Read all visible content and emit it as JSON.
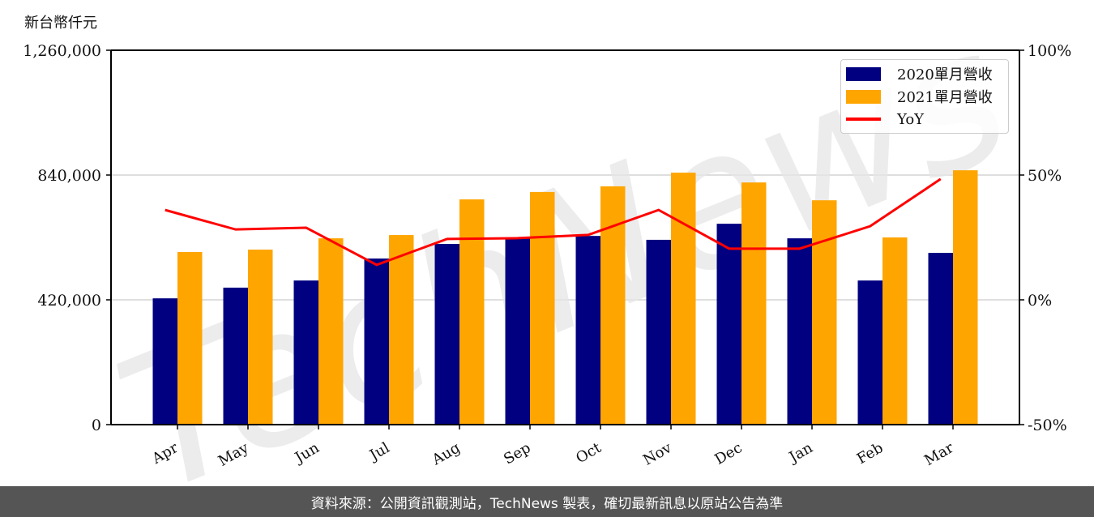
{
  "chart_data": {
    "type": "bar",
    "title": "",
    "ylabel": "新台幣仟元",
    "xlabel": "",
    "categories": [
      "Apr",
      "May",
      "Jun",
      "Jul",
      "Aug",
      "Sep",
      "Oct",
      "Nov",
      "Dec",
      "Jan",
      "Feb",
      "Mar"
    ],
    "series": [
      {
        "name": "2020單月營收",
        "type": "bar",
        "color": "#000080",
        "values": [
          425000,
          461000,
          485000,
          559000,
          608000,
          630000,
          635000,
          622000,
          676000,
          627000,
          485000,
          578000
        ]
      },
      {
        "name": "2021單月營收",
        "type": "bar",
        "color": "#FFA500",
        "values": [
          581000,
          589000,
          627000,
          638000,
          758000,
          783000,
          802000,
          848000,
          815000,
          755000,
          630000,
          856000
        ]
      },
      {
        "name": "YoY",
        "type": "line",
        "axis": "right",
        "color": "#FF0000",
        "values": [
          36.0,
          28.2,
          28.9,
          14.0,
          24.4,
          24.7,
          26.0,
          36.0,
          20.5,
          20.5,
          29.5,
          48.4
        ]
      }
    ],
    "ylim": [
      0,
      1260000
    ],
    "yticks": [
      0,
      420000,
      840000,
      1260000
    ],
    "ytick_labels": [
      "0",
      "420,000",
      "840,000",
      "1,260,000"
    ],
    "y2lim": [
      -50,
      100
    ],
    "y2ticks": [
      -50,
      0,
      50,
      100
    ],
    "y2tick_labels": [
      "-50%",
      "0%",
      "50%",
      "100%"
    ],
    "grid": "horizontal",
    "legend_position": "upper right",
    "watermark": "TechNews"
  },
  "unit_label": "新台幣仟元",
  "legend": {
    "items": [
      {
        "label": "2020單月營收"
      },
      {
        "label": "2021單月營收"
      },
      {
        "label": "YoY"
      }
    ]
  },
  "footer": {
    "text": "資料來源：公開資訊觀測站，TechNews 製表，確切最新訊息以原站公告為準"
  }
}
